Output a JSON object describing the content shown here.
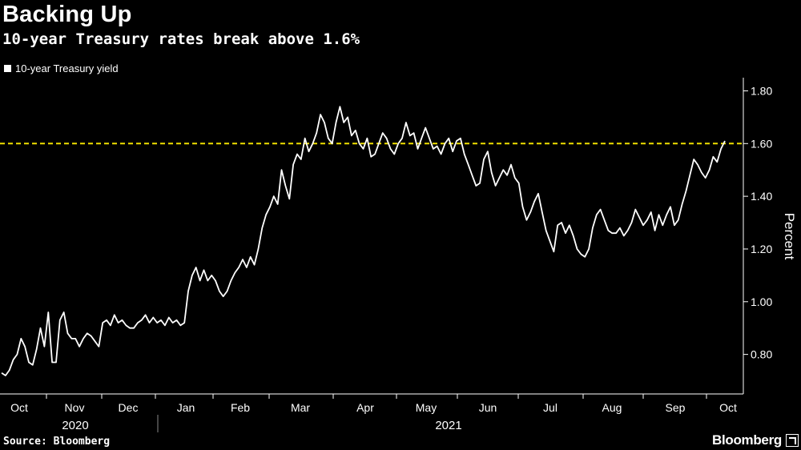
{
  "header": {
    "title": "Backing Up",
    "subtitle": "10-year Treasury rates break above 1.6%"
  },
  "legend": {
    "label": "10-year Treasury yield"
  },
  "footer": {
    "source": "Source: Bloomberg",
    "brand": "Bloomberg"
  },
  "colors": {
    "background": "#000000",
    "line": "#ffffff",
    "reference": "#f0e000"
  },
  "chart_data": {
    "type": "line",
    "title": "10-year Treasury rates break above 1.6%",
    "xlabel": "",
    "ylabel": "Percent",
    "ylim": [
      0.65,
      1.85
    ],
    "yticks": [
      0.8,
      1.0,
      1.2,
      1.4,
      1.6,
      1.8
    ],
    "ytick_labels": [
      "0.80",
      "1.00",
      "1.20",
      "1.40",
      "1.60",
      "1.80"
    ],
    "grid": false,
    "reference_line": {
      "value": 1.6,
      "style": "dashed"
    },
    "x_axis": {
      "months": [
        "Oct",
        "Nov",
        "Dec",
        "Jan",
        "Feb",
        "Mar",
        "Apr",
        "May",
        "Jun",
        "Jul",
        "Aug",
        "Sep",
        "Oct"
      ],
      "years": [
        "2020",
        "2021"
      ]
    },
    "series": [
      {
        "name": "10-year Treasury yield",
        "values": [
          0.73,
          0.72,
          0.74,
          0.78,
          0.8,
          0.86,
          0.83,
          0.77,
          0.76,
          0.82,
          0.9,
          0.83,
          0.96,
          0.77,
          0.77,
          0.93,
          0.96,
          0.88,
          0.86,
          0.86,
          0.83,
          0.86,
          0.88,
          0.87,
          0.85,
          0.83,
          0.92,
          0.93,
          0.91,
          0.95,
          0.92,
          0.93,
          0.91,
          0.9,
          0.9,
          0.92,
          0.93,
          0.95,
          0.92,
          0.94,
          0.92,
          0.93,
          0.91,
          0.94,
          0.92,
          0.93,
          0.91,
          0.92,
          1.04,
          1.1,
          1.13,
          1.08,
          1.12,
          1.08,
          1.1,
          1.08,
          1.04,
          1.02,
          1.04,
          1.08,
          1.11,
          1.13,
          1.16,
          1.13,
          1.17,
          1.14,
          1.2,
          1.28,
          1.33,
          1.36,
          1.4,
          1.37,
          1.5,
          1.44,
          1.39,
          1.52,
          1.56,
          1.54,
          1.62,
          1.57,
          1.6,
          1.64,
          1.71,
          1.68,
          1.62,
          1.6,
          1.68,
          1.74,
          1.68,
          1.7,
          1.63,
          1.65,
          1.6,
          1.58,
          1.62,
          1.55,
          1.56,
          1.6,
          1.64,
          1.62,
          1.58,
          1.56,
          1.6,
          1.62,
          1.68,
          1.63,
          1.64,
          1.58,
          1.62,
          1.66,
          1.62,
          1.58,
          1.59,
          1.56,
          1.6,
          1.62,
          1.57,
          1.61,
          1.62,
          1.56,
          1.52,
          1.48,
          1.44,
          1.45,
          1.54,
          1.57,
          1.49,
          1.44,
          1.47,
          1.5,
          1.48,
          1.52,
          1.47,
          1.45,
          1.36,
          1.31,
          1.34,
          1.38,
          1.41,
          1.34,
          1.27,
          1.23,
          1.19,
          1.29,
          1.3,
          1.26,
          1.29,
          1.25,
          1.2,
          1.18,
          1.17,
          1.2,
          1.28,
          1.33,
          1.35,
          1.31,
          1.27,
          1.26,
          1.26,
          1.28,
          1.25,
          1.27,
          1.3,
          1.35,
          1.32,
          1.29,
          1.31,
          1.34,
          1.27,
          1.33,
          1.29,
          1.33,
          1.36,
          1.29,
          1.31,
          1.37,
          1.42,
          1.48,
          1.54,
          1.52,
          1.49,
          1.47,
          1.5,
          1.55,
          1.53,
          1.58,
          1.61
        ]
      }
    ]
  }
}
